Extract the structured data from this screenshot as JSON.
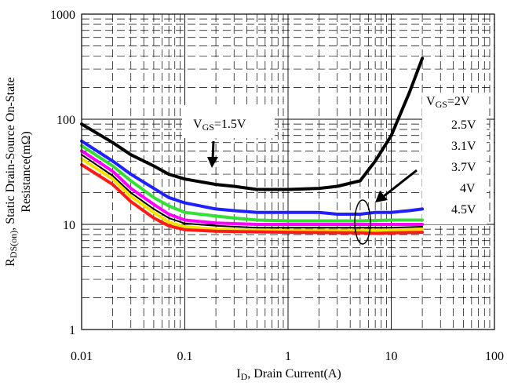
{
  "chart_data": {
    "type": "line",
    "title": "",
    "x_scale": "log",
    "y_scale": "log",
    "xlim": [
      0.01,
      100
    ],
    "ylim": [
      1,
      1000
    ],
    "xlabel_main": "I",
    "xlabel_sub": "D",
    "xlabel_rest": ", Drain Current(A)",
    "ylabel_line1": "Static Drain-Source On-State",
    "ylabel_line2_pre": "R",
    "ylabel_line2_sub": "DS(on)",
    "ylabel_line2_post": ", ",
    "ylabel_line3": "Resistance(mΩ)",
    "x_ticks": [
      {
        "value": 0.01,
        "label": "0.01"
      },
      {
        "value": 0.1,
        "label": "0.1"
      },
      {
        "value": 1,
        "label": "1"
      },
      {
        "value": 10,
        "label": "10"
      },
      {
        "value": 100,
        "label": "100"
      }
    ],
    "y_ticks": [
      {
        "value": 1,
        "label": "1"
      },
      {
        "value": 10,
        "label": "10"
      },
      {
        "value": 100,
        "label": "100"
      },
      {
        "value": 1000,
        "label": "1000"
      }
    ],
    "grid": "major solid, minor dashed",
    "series": [
      {
        "name": "V_GS=1.5V",
        "color": "#000000",
        "width": 4,
        "points": [
          [
            0.01,
            90
          ],
          [
            0.02,
            60
          ],
          [
            0.03,
            46
          ],
          [
            0.05,
            36
          ],
          [
            0.07,
            30
          ],
          [
            0.1,
            27
          ],
          [
            0.2,
            24
          ],
          [
            0.3,
            23
          ],
          [
            0.5,
            21.5
          ],
          [
            1,
            21.5
          ],
          [
            2,
            22
          ],
          [
            3,
            23
          ],
          [
            5,
            26
          ],
          [
            7,
            40
          ],
          [
            10,
            70
          ],
          [
            15,
            180
          ],
          [
            20,
            380
          ]
        ]
      },
      {
        "name": "2V",
        "color": "#1f1fff",
        "width": 4,
        "points": [
          [
            0.01,
            62
          ],
          [
            0.02,
            40
          ],
          [
            0.03,
            30
          ],
          [
            0.05,
            22
          ],
          [
            0.07,
            18
          ],
          [
            0.1,
            16
          ],
          [
            0.2,
            14
          ],
          [
            0.3,
            13.5
          ],
          [
            0.5,
            13
          ],
          [
            1,
            13
          ],
          [
            2,
            13
          ],
          [
            3,
            12.5
          ],
          [
            5,
            12.5
          ],
          [
            7,
            13
          ],
          [
            10,
            13
          ],
          [
            15,
            13.5
          ],
          [
            20,
            14
          ]
        ]
      },
      {
        "name": "2.5V",
        "color": "#33e033",
        "width": 4,
        "points": [
          [
            0.01,
            56
          ],
          [
            0.02,
            36
          ],
          [
            0.03,
            26
          ],
          [
            0.05,
            18
          ],
          [
            0.07,
            15
          ],
          [
            0.1,
            13
          ],
          [
            0.2,
            12
          ],
          [
            0.3,
            11.5
          ],
          [
            0.5,
            11
          ],
          [
            1,
            10.8
          ],
          [
            2,
            10.8
          ],
          [
            5,
            10.8
          ],
          [
            10,
            11
          ],
          [
            20,
            11
          ]
        ]
      },
      {
        "name": "3.1V",
        "color": "#ff00ff",
        "width": 4,
        "points": [
          [
            0.01,
            50
          ],
          [
            0.02,
            32
          ],
          [
            0.03,
            22
          ],
          [
            0.05,
            15.5
          ],
          [
            0.07,
            12.5
          ],
          [
            0.1,
            11
          ],
          [
            0.2,
            10.3
          ],
          [
            0.5,
            10
          ],
          [
            1,
            10
          ],
          [
            5,
            10
          ],
          [
            10,
            10
          ],
          [
            20,
            10
          ]
        ]
      },
      {
        "name": "3.7V",
        "color": "#000000",
        "width": 2,
        "points": [
          [
            0.01,
            46
          ],
          [
            0.02,
            29
          ],
          [
            0.03,
            20
          ],
          [
            0.05,
            14
          ],
          [
            0.07,
            11.5
          ],
          [
            0.1,
            10.2
          ],
          [
            0.2,
            9.7
          ],
          [
            0.5,
            9.3
          ],
          [
            1,
            9.3
          ],
          [
            5,
            9.3
          ],
          [
            10,
            9.3
          ],
          [
            20,
            9.5
          ]
        ]
      },
      {
        "name": "4V",
        "color": "#f2e600",
        "width": 4,
        "points": [
          [
            0.01,
            42
          ],
          [
            0.02,
            27
          ],
          [
            0.03,
            18.5
          ],
          [
            0.05,
            13
          ],
          [
            0.07,
            10.5
          ],
          [
            0.1,
            9.5
          ],
          [
            0.2,
            9
          ],
          [
            0.5,
            8.8
          ],
          [
            1,
            8.7
          ],
          [
            5,
            8.7
          ],
          [
            10,
            8.8
          ],
          [
            20,
            9
          ]
        ]
      },
      {
        "name": "4.5V",
        "color": "#ff1a1a",
        "width": 4,
        "points": [
          [
            0.01,
            37
          ],
          [
            0.02,
            24
          ],
          [
            0.03,
            16.5
          ],
          [
            0.05,
            11.5
          ],
          [
            0.07,
            9.7
          ],
          [
            0.1,
            8.9
          ],
          [
            0.2,
            8.6
          ],
          [
            0.5,
            8.5
          ],
          [
            1,
            8.4
          ],
          [
            5,
            8.3
          ],
          [
            7,
            8.2
          ],
          [
            10,
            8.3
          ],
          [
            20,
            8.4
          ]
        ]
      }
    ],
    "annotations": {
      "vgs15_pre": "V",
      "vgs15_sub": "GS",
      "vgs15_post": "=1.5V",
      "legend_first_pre": "V",
      "legend_first_sub": "GS",
      "legend_first_post": "=2V",
      "legend_rest": [
        "2.5V",
        "3.1V",
        "3.7V",
        "4V",
        "4.5V"
      ]
    }
  }
}
